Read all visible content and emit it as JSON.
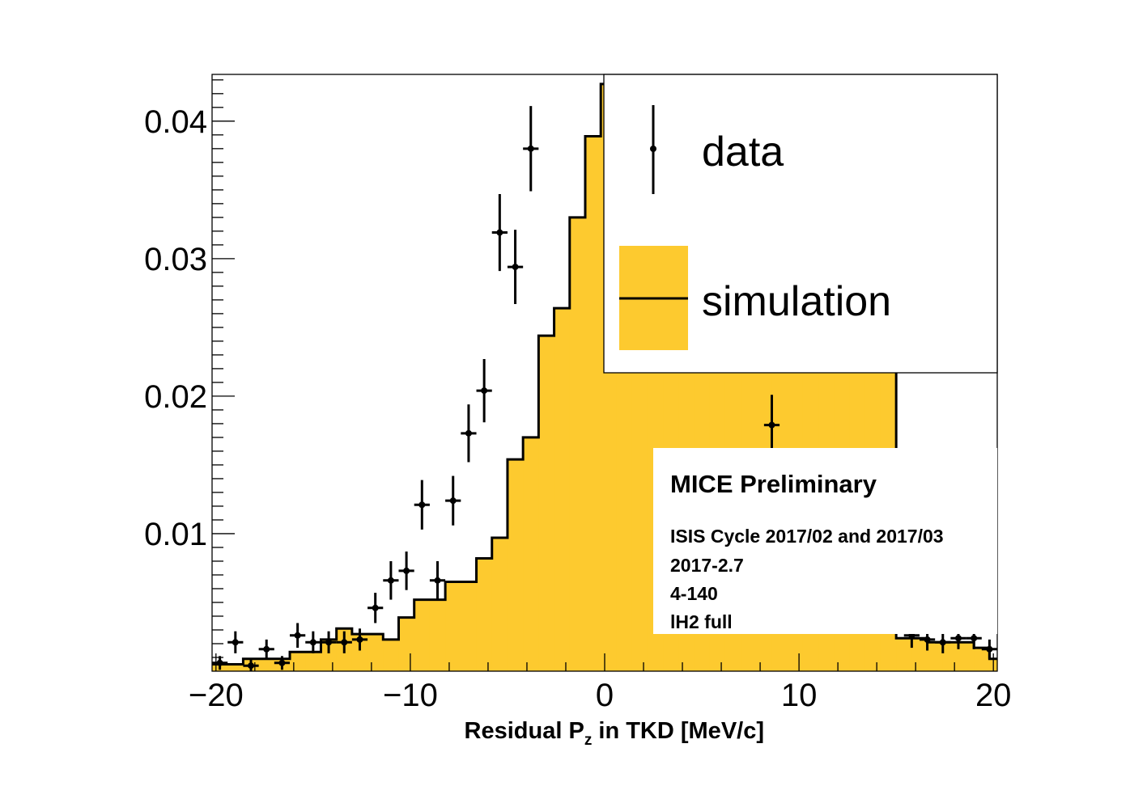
{
  "colors": {
    "simulation_fill": "#fdca2f",
    "line": "#000000",
    "background": "#ffffff"
  },
  "chart_data": {
    "type": "bar",
    "xlabel_main": "Residual P",
    "xlabel_sub": "z",
    "xlabel_rest": " in TKD [MeV/c]",
    "ylabel": "",
    "xlim": [
      -20.2,
      20.2
    ],
    "ylim": [
      0,
      0.0434
    ],
    "x_ticks": [
      -20,
      -10,
      0,
      10,
      20
    ],
    "x_tick_labels": [
      "−20",
      "−10",
      "0",
      "10",
      "20"
    ],
    "y_ticks": [
      0.01,
      0.02,
      0.03,
      0.04
    ],
    "y_tick_labels": [
      "0.01",
      "0.02",
      "0.03",
      "0.04"
    ],
    "bin_width": 0.8,
    "x_start": -20.2,
    "series": [
      {
        "name": "simulation",
        "style": "filled-step",
        "values": [
          0.0005,
          0.0005,
          0.0009,
          0.0009,
          0.0009,
          0.0014,
          0.0014,
          0.0023,
          0.0031,
          0.0027,
          0.0027,
          0.0023,
          0.0039,
          0.0052,
          0.0052,
          0.0065,
          0.0065,
          0.0082,
          0.0097,
          0.0154,
          0.017,
          0.0244,
          0.0264,
          0.033,
          0.0389,
          0.0427,
          0.0433,
          0.0433,
          0.0433,
          0.0433,
          0.0433,
          0.0433,
          0.0433,
          0.0433,
          0.0433,
          0.0433,
          0.0433,
          0.0433,
          0.0433,
          0.0433,
          0.0433,
          0.0433,
          0.0433,
          0.0433,
          0.0024,
          0.0024,
          0.0021,
          0.0021,
          0.0021,
          0.0017,
          0.0009
        ]
      },
      {
        "name": "data",
        "style": "points-errorbars",
        "x": [
          -19.8,
          -19.0,
          -18.2,
          -17.4,
          -16.6,
          -15.8,
          -15.0,
          -14.2,
          -13.4,
          -12.6,
          -11.8,
          -11.0,
          -10.2,
          -9.4,
          -8.6,
          -7.8,
          -7.0,
          -6.2,
          -5.4,
          -4.6,
          -3.8,
          8.6,
          15.8,
          16.6,
          17.4,
          18.2,
          19.0,
          19.8
        ],
        "y": [
          0.0006,
          0.0021,
          0.0004,
          0.0016,
          0.0006,
          0.0026,
          0.0021,
          0.0021,
          0.0021,
          0.0023,
          0.0046,
          0.0066,
          0.0073,
          0.0121,
          0.0066,
          0.0124,
          0.0173,
          0.0204,
          0.0319,
          0.0294,
          0.038,
          0.0179,
          0.0026,
          0.0023,
          0.0021,
          0.0024,
          0.0024,
          0.0016
        ],
        "err": [
          0.0005,
          0.0008,
          0.0005,
          0.0007,
          0.0005,
          0.0009,
          0.0008,
          0.0008,
          0.0008,
          0.0008,
          0.0011,
          0.0014,
          0.0014,
          0.0018,
          0.0014,
          0.0018,
          0.0021,
          0.0023,
          0.0028,
          0.0027,
          0.0031,
          0.0022,
          0.0009,
          0.0008,
          0.0008,
          0.0008,
          0.0008,
          0.0007
        ]
      }
    ],
    "legend": {
      "position": "top-right",
      "entries": [
        {
          "label": "data",
          "marker": "point-errorbar"
        },
        {
          "label": "simulation",
          "marker": "filled-box-line"
        }
      ]
    },
    "annotation": {
      "title": "MICE Preliminary",
      "lines": [
        "ISIS Cycle 2017/02 and 2017/03",
        "2017-2.7",
        "4-140",
        "lH2 full"
      ]
    }
  }
}
